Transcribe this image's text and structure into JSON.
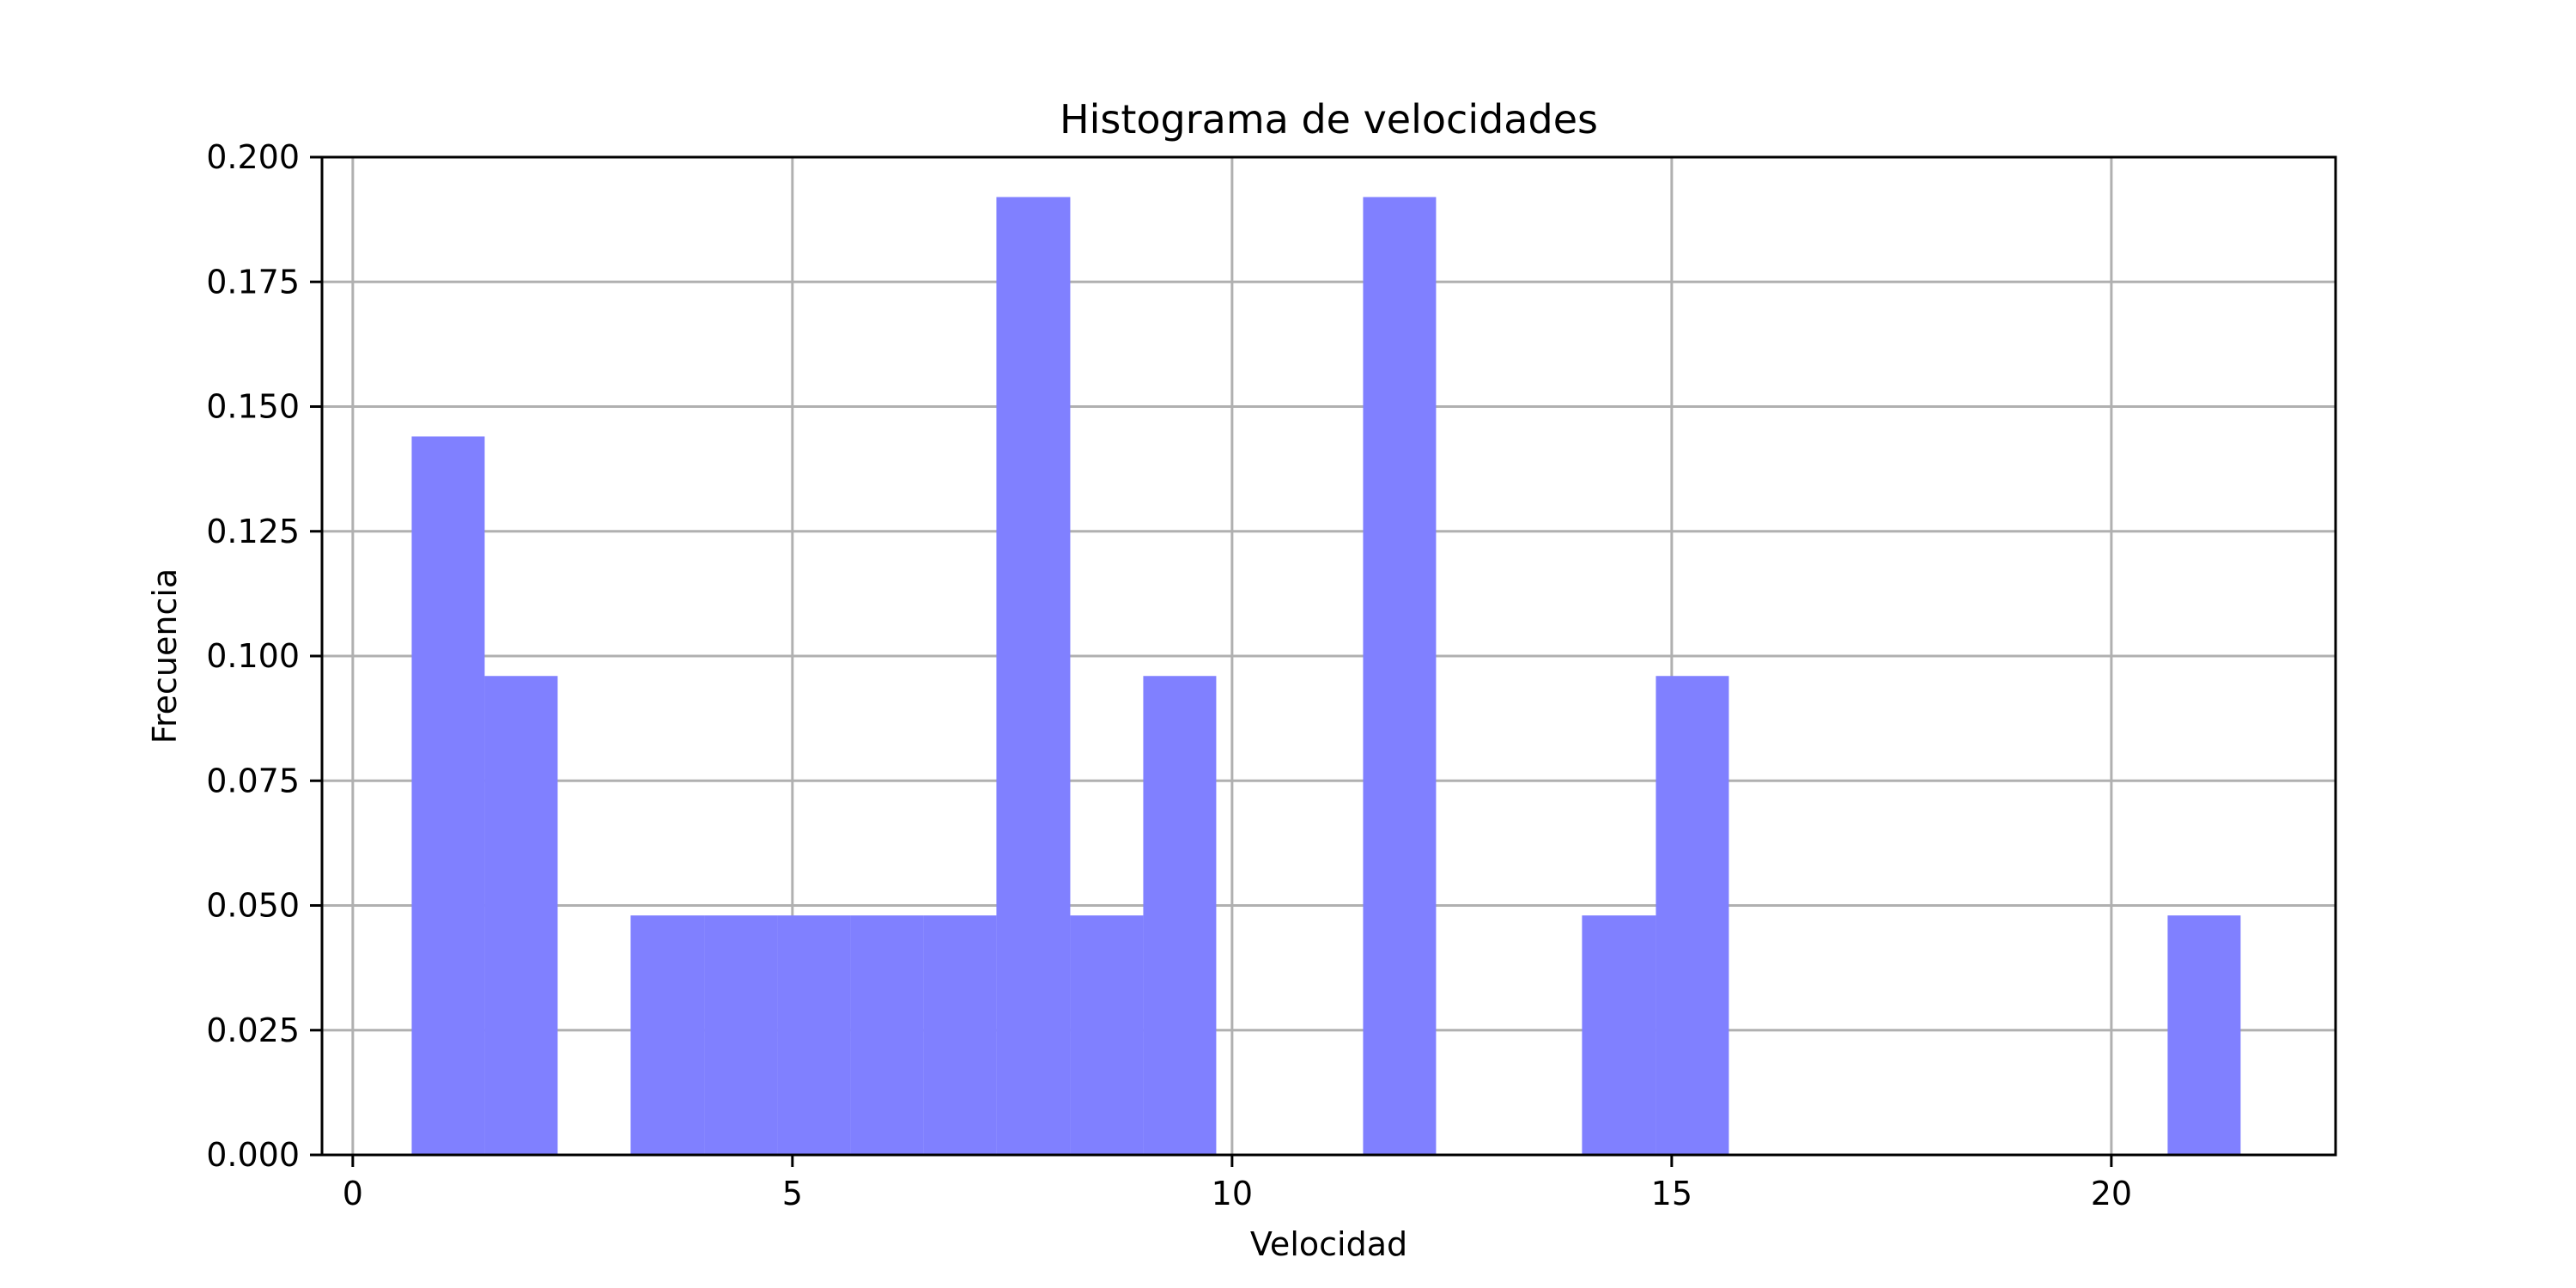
{
  "chart_data": {
    "type": "bar",
    "subtype": "histogram",
    "title": "Histograma de velocidades",
    "xlabel": "Velocidad",
    "ylabel": "Frecuencia",
    "xlim": [
      -0.35,
      22.55
    ],
    "ylim": [
      0,
      0.2
    ],
    "grid": true,
    "legend": "none",
    "colors": {
      "bar": "#8080ff",
      "grid": "#b0b0b0",
      "axes": "#000000"
    },
    "x_ticks": [
      0,
      5,
      10,
      15,
      20
    ],
    "x_tick_labels": [
      "0",
      "5",
      "10",
      "15",
      "20"
    ],
    "y_ticks": [
      0,
      0.025,
      0.05,
      0.075,
      0.1,
      0.125,
      0.15,
      0.175,
      0.2
    ],
    "y_tick_labels": [
      "0.000",
      "0.025",
      "0.050",
      "0.075",
      "0.100",
      "0.125",
      "0.150",
      "0.175",
      "0.200"
    ],
    "bins": [
      {
        "x0": 0.67,
        "x1": 1.5,
        "value": 0.144
      },
      {
        "x0": 1.5,
        "x1": 2.33,
        "value": 0.096
      },
      {
        "x0": 2.33,
        "x1": 3.16,
        "value": 0.0
      },
      {
        "x0": 3.16,
        "x1": 4.0,
        "value": 0.048
      },
      {
        "x0": 4.0,
        "x1": 4.83,
        "value": 0.048
      },
      {
        "x0": 4.83,
        "x1": 5.66,
        "value": 0.048
      },
      {
        "x0": 5.66,
        "x1": 6.49,
        "value": 0.048
      },
      {
        "x0": 6.49,
        "x1": 7.32,
        "value": 0.048
      },
      {
        "x0": 7.32,
        "x1": 8.16,
        "value": 0.192
      },
      {
        "x0": 8.16,
        "x1": 8.99,
        "value": 0.048
      },
      {
        "x0": 8.99,
        "x1": 9.82,
        "value": 0.096
      },
      {
        "x0": 9.82,
        "x1": 10.65,
        "value": 0.0
      },
      {
        "x0": 10.65,
        "x1": 11.49,
        "value": 0.0
      },
      {
        "x0": 11.49,
        "x1": 12.32,
        "value": 0.192
      },
      {
        "x0": 12.32,
        "x1": 13.15,
        "value": 0.0
      },
      {
        "x0": 13.15,
        "x1": 13.98,
        "value": 0.0
      },
      {
        "x0": 13.98,
        "x1": 14.82,
        "value": 0.048
      },
      {
        "x0": 14.82,
        "x1": 15.65,
        "value": 0.096
      },
      {
        "x0": 15.65,
        "x1": 16.48,
        "value": 0.0
      },
      {
        "x0": 16.48,
        "x1": 17.31,
        "value": 0.0
      },
      {
        "x0": 17.31,
        "x1": 18.14,
        "value": 0.0
      },
      {
        "x0": 18.14,
        "x1": 18.98,
        "value": 0.0
      },
      {
        "x0": 18.98,
        "x1": 19.81,
        "value": 0.0
      },
      {
        "x0": 19.81,
        "x1": 20.64,
        "value": 0.0
      },
      {
        "x0": 20.64,
        "x1": 21.47,
        "value": 0.048
      }
    ]
  }
}
